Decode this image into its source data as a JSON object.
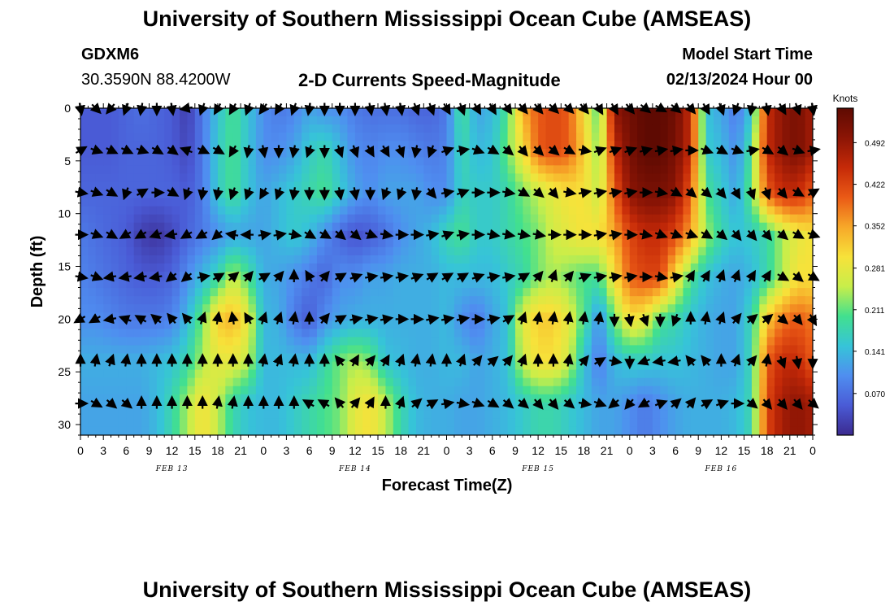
{
  "header": {
    "title": "University of Southern Mississippi Ocean Cube (AMSEAS)",
    "station_id": "GDXM6",
    "coordinates": "30.3590N  88.4200W",
    "product": "2-D Currents Speed-Magnitude",
    "model_start_label": "Model Start Time",
    "model_start_value": "02/13/2024 Hour 00"
  },
  "footer": {
    "title": "University of Southern Mississippi Ocean Cube (AMSEAS)"
  },
  "chart_data": {
    "type": "heatmap",
    "title": "2-D Currents Speed-Magnitude",
    "xlabel": "Forecast Time(Z)",
    "ylabel": "Depth (ft)",
    "x_tick_labels": [
      "0",
      "3",
      "6",
      "9",
      "12",
      "15",
      "18",
      "21",
      "0",
      "3",
      "6",
      "9",
      "12",
      "15",
      "18",
      "21",
      "0",
      "3",
      "6",
      "9",
      "12",
      "15",
      "18",
      "21",
      "0",
      "3",
      "6",
      "9",
      "12",
      "15",
      "18",
      "21",
      "0"
    ],
    "x_range_hours": [
      0,
      96
    ],
    "date_labels": [
      {
        "text": "FEB 13",
        "hour": 12
      },
      {
        "text": "FEB 14",
        "hour": 36
      },
      {
        "text": "FEB 15",
        "hour": 60
      },
      {
        "text": "FEB 16",
        "hour": 84
      }
    ],
    "y_ticks": [
      "0",
      "5",
      "10",
      "15",
      "20",
      "25",
      "30"
    ],
    "y_range_ft": [
      0,
      31
    ],
    "y_inverted": true,
    "colorbar": {
      "unit": "Knots",
      "min": 0.0,
      "max": 0.55,
      "tick_labels": [
        "0.070",
        "0.141",
        "0.211",
        "0.281",
        "0.352",
        "0.422",
        "0.492"
      ],
      "tick_values": [
        0.07,
        0.141,
        0.211,
        0.281,
        0.352,
        0.422,
        0.492
      ],
      "colors": [
        "#3b2a8f",
        "#4a5bd6",
        "#4f8ef0",
        "#36c4d8",
        "#42e08e",
        "#c8ee4a",
        "#f7e23a",
        "#f7a829",
        "#ea5a16",
        "#c62a08",
        "#8c1505",
        "#5e0a02"
      ]
    },
    "depths_ft": [
      0,
      4,
      8,
      12,
      16,
      20,
      24,
      28
    ],
    "times_h": [
      0,
      2,
      4,
      6,
      8,
      10,
      12,
      14,
      16,
      18,
      20,
      22,
      24,
      26,
      28,
      30,
      32,
      34,
      36,
      38,
      40,
      42,
      44,
      46,
      48,
      50,
      52,
      54,
      56,
      58,
      60,
      62,
      64,
      66,
      68,
      70,
      72,
      74,
      76,
      78,
      80,
      82,
      84,
      86,
      88,
      90,
      92,
      94,
      96
    ],
    "speed_knots": [
      [
        0.05,
        0.05,
        0.05,
        0.06,
        0.07,
        0.06,
        0.05,
        0.02,
        0.08,
        0.15,
        0.2,
        0.15,
        0.1,
        0.08,
        0.09,
        0.12,
        0.1,
        0.1,
        0.08,
        0.07,
        0.07,
        0.07,
        0.06,
        0.06,
        0.08,
        0.2,
        0.12,
        0.14,
        0.2,
        0.35,
        0.4,
        0.42,
        0.4,
        0.3,
        0.2,
        0.5,
        0.53,
        0.55,
        0.55,
        0.53,
        0.45,
        0.15,
        0.12,
        0.08,
        0.15,
        0.45,
        0.5,
        0.52,
        0.48
      ],
      [
        0.05,
        0.05,
        0.05,
        0.06,
        0.06,
        0.06,
        0.05,
        0.03,
        0.08,
        0.16,
        0.2,
        0.15,
        0.1,
        0.1,
        0.12,
        0.16,
        0.18,
        0.14,
        0.1,
        0.09,
        0.1,
        0.1,
        0.09,
        0.08,
        0.09,
        0.18,
        0.14,
        0.15,
        0.22,
        0.3,
        0.4,
        0.42,
        0.4,
        0.32,
        0.22,
        0.45,
        0.52,
        0.55,
        0.55,
        0.52,
        0.45,
        0.16,
        0.14,
        0.1,
        0.2,
        0.45,
        0.5,
        0.52,
        0.48
      ],
      [
        0.06,
        0.06,
        0.06,
        0.06,
        0.06,
        0.06,
        0.06,
        0.05,
        0.08,
        0.16,
        0.2,
        0.15,
        0.12,
        0.14,
        0.16,
        0.18,
        0.2,
        0.16,
        0.12,
        0.1,
        0.12,
        0.12,
        0.12,
        0.1,
        0.1,
        0.17,
        0.16,
        0.16,
        0.18,
        0.22,
        0.25,
        0.28,
        0.3,
        0.3,
        0.25,
        0.4,
        0.5,
        0.52,
        0.52,
        0.5,
        0.4,
        0.2,
        0.16,
        0.12,
        0.22,
        0.4,
        0.45,
        0.45,
        0.4
      ],
      [
        0.08,
        0.07,
        0.06,
        0.05,
        0.02,
        0.01,
        0.03,
        0.06,
        0.08,
        0.1,
        0.12,
        0.12,
        0.12,
        0.14,
        0.16,
        0.14,
        0.1,
        0.06,
        0.04,
        0.05,
        0.07,
        0.1,
        0.12,
        0.14,
        0.18,
        0.2,
        0.16,
        0.16,
        0.18,
        0.2,
        0.22,
        0.26,
        0.28,
        0.3,
        0.3,
        0.35,
        0.42,
        0.45,
        0.45,
        0.42,
        0.35,
        0.24,
        0.18,
        0.15,
        0.16,
        0.18,
        0.24,
        0.28,
        0.3
      ],
      [
        0.09,
        0.08,
        0.07,
        0.06,
        0.05,
        0.05,
        0.06,
        0.1,
        0.14,
        0.18,
        0.25,
        0.2,
        0.13,
        0.12,
        0.1,
        0.08,
        0.06,
        0.1,
        0.1,
        0.12,
        0.12,
        0.13,
        0.13,
        0.13,
        0.14,
        0.14,
        0.14,
        0.14,
        0.16,
        0.18,
        0.22,
        0.24,
        0.22,
        0.2,
        0.2,
        0.3,
        0.4,
        0.42,
        0.42,
        0.3,
        0.2,
        0.15,
        0.13,
        0.12,
        0.14,
        0.18,
        0.24,
        0.3,
        0.3
      ],
      [
        0.1,
        0.1,
        0.09,
        0.08,
        0.08,
        0.08,
        0.09,
        0.14,
        0.22,
        0.32,
        0.34,
        0.28,
        0.14,
        0.13,
        0.08,
        0.05,
        0.1,
        0.12,
        0.13,
        0.13,
        0.13,
        0.13,
        0.13,
        0.13,
        0.14,
        0.1,
        0.08,
        0.12,
        0.15,
        0.28,
        0.32,
        0.32,
        0.28,
        0.2,
        0.1,
        0.22,
        0.3,
        0.28,
        0.2,
        0.18,
        0.15,
        0.13,
        0.12,
        0.12,
        0.18,
        0.32,
        0.38,
        0.4,
        0.38
      ],
      [
        0.13,
        0.13,
        0.13,
        0.13,
        0.13,
        0.14,
        0.15,
        0.18,
        0.24,
        0.28,
        0.28,
        0.25,
        0.14,
        0.14,
        0.14,
        0.14,
        0.18,
        0.22,
        0.24,
        0.22,
        0.15,
        0.14,
        0.13,
        0.13,
        0.14,
        0.14,
        0.12,
        0.13,
        0.15,
        0.26,
        0.3,
        0.3,
        0.26,
        0.15,
        0.08,
        0.14,
        0.16,
        0.16,
        0.15,
        0.15,
        0.14,
        0.13,
        0.12,
        0.12,
        0.18,
        0.4,
        0.45,
        0.45,
        0.4
      ],
      [
        0.12,
        0.12,
        0.12,
        0.12,
        0.12,
        0.14,
        0.18,
        0.24,
        0.3,
        0.25,
        0.18,
        0.15,
        0.14,
        0.14,
        0.16,
        0.18,
        0.2,
        0.22,
        0.28,
        0.3,
        0.25,
        0.18,
        0.14,
        0.13,
        0.13,
        0.12,
        0.12,
        0.13,
        0.14,
        0.16,
        0.18,
        0.18,
        0.16,
        0.14,
        0.12,
        0.12,
        0.1,
        0.08,
        0.1,
        0.12,
        0.13,
        0.13,
        0.13,
        0.14,
        0.18,
        0.42,
        0.48,
        0.5,
        0.48
      ]
    ],
    "arrow_times_h": [
      0,
      2,
      4,
      6,
      8,
      10,
      12,
      14,
      16,
      18,
      20,
      22,
      24,
      26,
      28,
      30,
      32,
      34,
      36,
      38,
      40,
      42,
      44,
      46,
      48,
      50,
      52,
      54,
      56,
      58,
      60,
      62,
      64,
      66,
      68,
      70,
      72,
      74,
      76,
      78,
      80,
      82,
      84,
      86,
      88,
      90,
      92,
      94,
      96
    ],
    "arrow_depths_ft": [
      0,
      4,
      8,
      12,
      16,
      20,
      24,
      28
    ],
    "arrow_direction_deg": [
      [
        170,
        135,
        220,
        200,
        190,
        180,
        170,
        260,
        200,
        210,
        210,
        200,
        215,
        210,
        200,
        190,
        180,
        180,
        180,
        170,
        170,
        170,
        160,
        160,
        150,
        160,
        150,
        150,
        145,
        140,
        140,
        135,
        135,
        140,
        150,
        150,
        140,
        130,
        120,
        130,
        140,
        150,
        160,
        200,
        190,
        170,
        150,
        160,
        170
      ],
      [
        60,
        110,
        115,
        115,
        110,
        120,
        125,
        290,
        115,
        120,
        210,
        190,
        170,
        180,
        190,
        200,
        180,
        160,
        160,
        150,
        150,
        160,
        190,
        200,
        70,
        80,
        110,
        120,
        130,
        140,
        135,
        130,
        120,
        100,
        70,
        70,
        70,
        75,
        80,
        80,
        90,
        110,
        120,
        110,
        80,
        120,
        130,
        110,
        80
      ],
      [
        100,
        110,
        120,
        200,
        60,
        90,
        120,
        200,
        190,
        190,
        200,
        200,
        210,
        200,
        190,
        180,
        180,
        170,
        170,
        180,
        200,
        200,
        190,
        140,
        80,
        70,
        90,
        90,
        100,
        120,
        130,
        140,
        100,
        80,
        80,
        80,
        80,
        90,
        100,
        120,
        130,
        130,
        140,
        150,
        160,
        160,
        140,
        120,
        60
      ],
      [
        90,
        110,
        120,
        240,
        240,
        250,
        260,
        240,
        240,
        230,
        280,
        270,
        80,
        80,
        100,
        120,
        120,
        130,
        130,
        110,
        100,
        90,
        90,
        80,
        70,
        80,
        90,
        100,
        100,
        100,
        100,
        90,
        90,
        90,
        80,
        80,
        90,
        100,
        110,
        110,
        110,
        120,
        130,
        140,
        140,
        140,
        130,
        120,
        110
      ],
      [
        100,
        110,
        260,
        260,
        260,
        260,
        230,
        230,
        80,
        60,
        50,
        40,
        60,
        40,
        0,
        330,
        40,
        60,
        70,
        80,
        80,
        80,
        70,
        60,
        60,
        60,
        70,
        80,
        80,
        60,
        40,
        20,
        40,
        70,
        80,
        80,
        80,
        90,
        100,
        80,
        30,
        30,
        20,
        20,
        30,
        30,
        120,
        130,
        120
      ],
      [
        240,
        240,
        260,
        290,
        300,
        310,
        320,
        320,
        20,
        10,
        350,
        330,
        20,
        20,
        10,
        0,
        40,
        60,
        80,
        80,
        80,
        90,
        90,
        80,
        80,
        80,
        90,
        80,
        60,
        20,
        10,
        10,
        10,
        10,
        10,
        180,
        170,
        160,
        180,
        200,
        0,
        10,
        20,
        40,
        50,
        50,
        130,
        140,
        150
      ],
      [
        0,
        10,
        20,
        10,
        0,
        0,
        0,
        0,
        0,
        0,
        0,
        0,
        10,
        20,
        10,
        0,
        0,
        320,
        30,
        40,
        30,
        20,
        10,
        10,
        0,
        20,
        40,
        50,
        40,
        20,
        0,
        0,
        10,
        40,
        60,
        100,
        180,
        250,
        260,
        260,
        320,
        320,
        0,
        20,
        40,
        10,
        160,
        170,
        180
      ],
      [
        90,
        120,
        130,
        130,
        0,
        0,
        0,
        0,
        0,
        10,
        10,
        0,
        0,
        0,
        0,
        300,
        300,
        320,
        40,
        30,
        0,
        20,
        50,
        60,
        80,
        100,
        110,
        120,
        130,
        130,
        140,
        140,
        130,
        100,
        110,
        230,
        220,
        240,
        70,
        50,
        40,
        60,
        70,
        90,
        130,
        140,
        140,
        140,
        130
      ]
    ]
  }
}
